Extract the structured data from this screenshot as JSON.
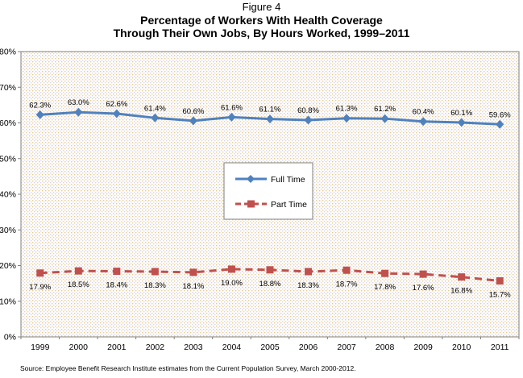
{
  "figure": {
    "label": "Figure 4",
    "title_line1": "Percentage of Workers With Health Coverage",
    "title_line2": "Through Their Own Jobs, By Hours Worked, 1999–2011"
  },
  "source_note": "Source: Employee Benefit Research Institute estimates from the Current Population Survey, March 2000-2012.",
  "chart_data": {
    "type": "line",
    "title": "Percentage of Workers With Health Coverage Through Their Own Jobs, By Hours Worked, 1999–2011",
    "categories": [
      "1999",
      "2000",
      "2001",
      "2002",
      "2003",
      "2004",
      "2005",
      "2006",
      "2007",
      "2008",
      "2009",
      "2010",
      "2011"
    ],
    "series": [
      {
        "name": "Full Time",
        "color": "#4F81BD",
        "marker": "diamond",
        "line_style": "solid",
        "label_position": "above",
        "values": [
          62.3,
          63.0,
          62.6,
          61.4,
          60.6,
          61.6,
          61.1,
          60.8,
          61.3,
          61.2,
          60.4,
          60.1,
          59.6
        ],
        "labels": [
          "62.3%",
          "63.0%",
          "62.6%",
          "61.4%",
          "60.6%",
          "61.6%",
          "61.1%",
          "60.8%",
          "61.3%",
          "61.2%",
          "60.4%",
          "60.1%",
          "59.6%"
        ]
      },
      {
        "name": "Part Time",
        "color": "#C0504D",
        "marker": "square",
        "line_style": "dashed",
        "label_position": "below",
        "values": [
          17.9,
          18.5,
          18.4,
          18.3,
          18.1,
          19.0,
          18.8,
          18.3,
          18.7,
          17.8,
          17.6,
          16.8,
          15.7
        ],
        "labels": [
          "17.9%",
          "18.5%",
          "18.4%",
          "18.3%",
          "18.1%",
          "19.0%",
          "18.8%",
          "18.3%",
          "18.7%",
          "17.8%",
          "17.6%",
          "16.8%",
          "15.7%"
        ]
      }
    ],
    "xlabel": "",
    "ylabel": "",
    "ylim": [
      0,
      80
    ],
    "ytick_labels": [
      "0%",
      "10%",
      "20%",
      "30%",
      "40%",
      "50%",
      "60%",
      "70%",
      "80%"
    ],
    "grid": false,
    "legend_position": "center",
    "plot_background": "white with beige-gray dot pattern",
    "axis_color": "#808080"
  }
}
